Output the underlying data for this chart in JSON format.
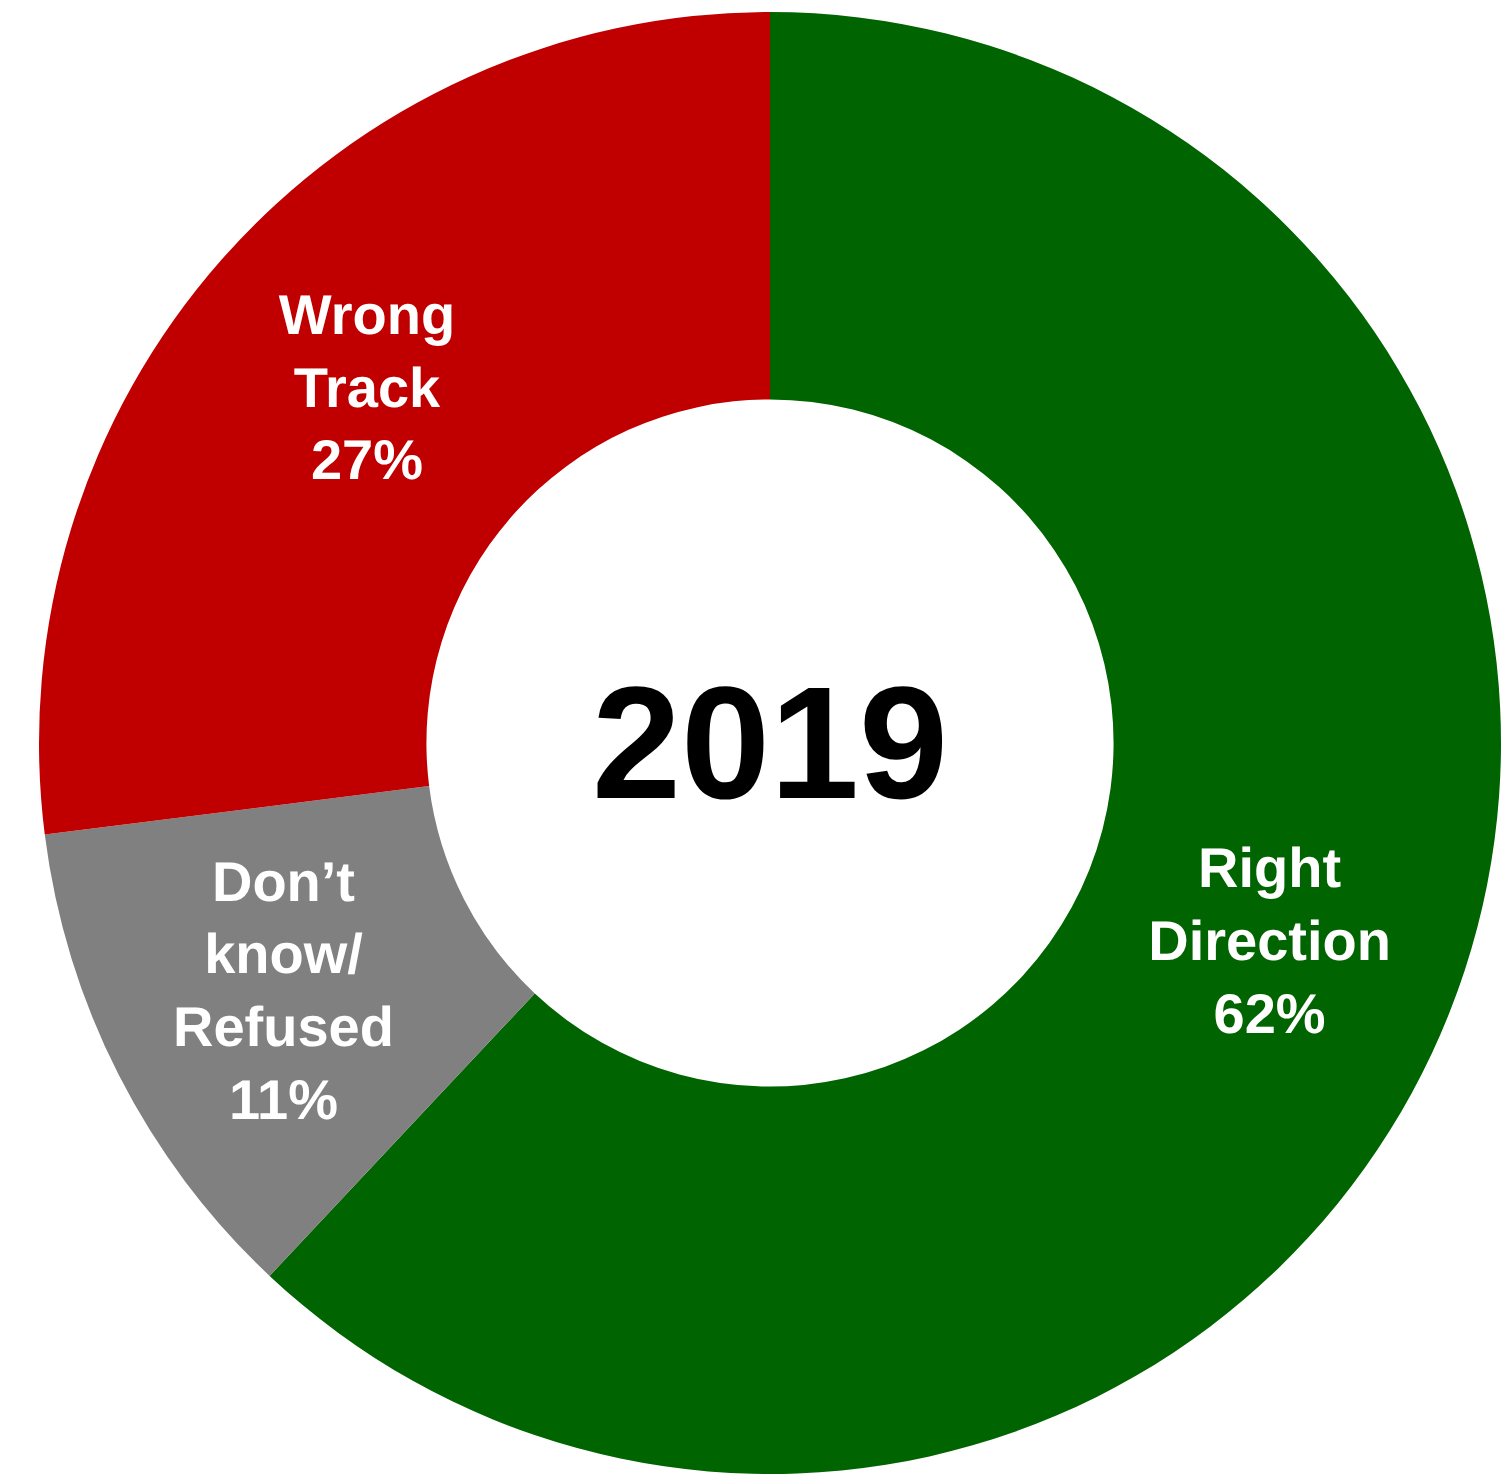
{
  "chart_data": {
    "type": "donut",
    "title": "2019",
    "categories": [
      "Right Direction",
      "Don’t know/Refused",
      "Wrong Track"
    ],
    "values": [
      62,
      11,
      27
    ],
    "value_labels": [
      "62%",
      "11%",
      "27%"
    ],
    "colors": [
      "#006400",
      "#808080",
      "#c00000"
    ]
  }
}
